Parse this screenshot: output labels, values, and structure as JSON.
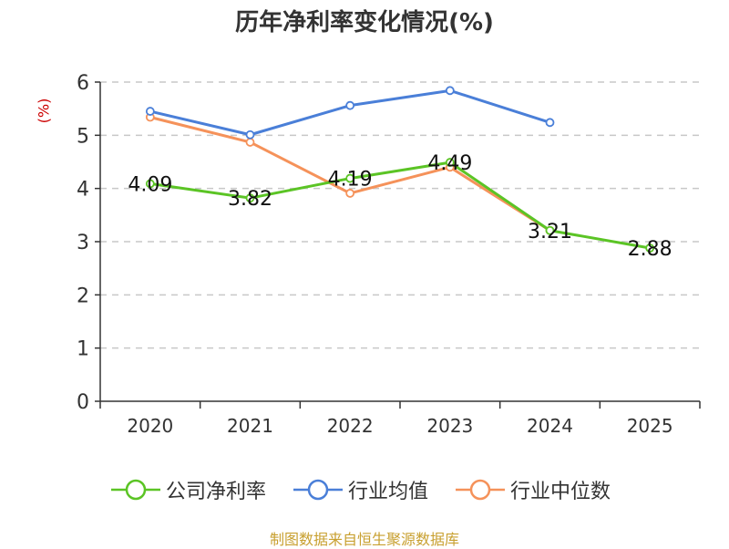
{
  "chart_data": {
    "type": "line",
    "title": "历年净利率变化情况(%)",
    "ylabel": "(%)",
    "xlabel": "",
    "ylim": [
      0,
      6
    ],
    "yticks": [
      0,
      1,
      2,
      3,
      4,
      5,
      6
    ],
    "categories": [
      "2020",
      "2021",
      "2022",
      "2023",
      "2024",
      "2025"
    ],
    "grid": true,
    "legend_position": "bottom",
    "series": [
      {
        "name": "公司净利率",
        "color": "#5bc425",
        "values": [
          4.09,
          3.82,
          4.19,
          4.49,
          3.21,
          2.88
        ],
        "labels": [
          "4.09",
          "3.82",
          "4.19",
          "4.49",
          "3.21",
          "2.88"
        ]
      },
      {
        "name": "行业均值",
        "color": "#4a7fd8",
        "values": [
          5.45,
          5.01,
          5.56,
          5.84,
          5.24,
          null
        ]
      },
      {
        "name": "行业中位数",
        "color": "#f5925a",
        "values": [
          5.34,
          4.87,
          3.91,
          4.4,
          3.21,
          null
        ]
      }
    ]
  },
  "source": "制图数据来自恒生聚源数据库"
}
